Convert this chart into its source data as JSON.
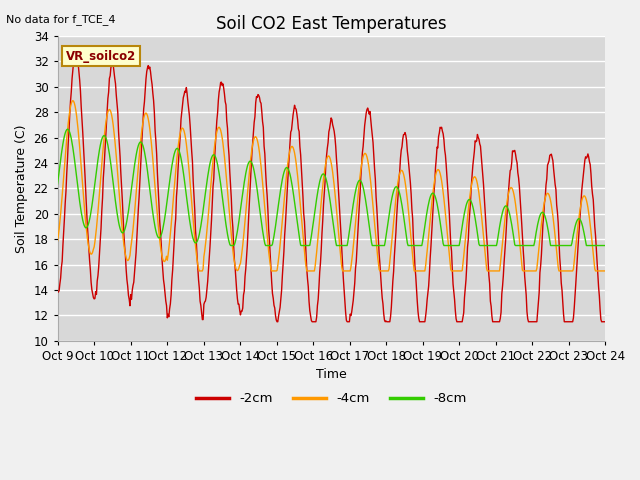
{
  "title": "Soil CO2 East Temperatures",
  "subtitle": "No data for f_TCE_4",
  "ylabel": "Soil Temperature (C)",
  "xlabel": "Time",
  "ylim": [
    10,
    34
  ],
  "xtick_labels": [
    "Oct 9",
    "Oct 10",
    "Oct 11",
    "Oct 12",
    "Oct 13",
    "Oct 14",
    "Oct 15",
    "Oct 16",
    "Oct 17",
    "Oct 18",
    "Oct 19",
    "Oct 20",
    "Oct 21",
    "Oct 22",
    "Oct 23",
    "Oct 24"
  ],
  "legend_label": "VR_soilco2",
  "series_labels": [
    "-2cm",
    "-4cm",
    "-8cm"
  ],
  "series_colors": [
    "#cc0000",
    "#ff9900",
    "#33cc00"
  ],
  "plot_bg_color": "#d8d8d8",
  "fig_bg_color": "#f0f0f0",
  "grid_color": "#ffffff",
  "title_fontsize": 12,
  "axis_fontsize": 9,
  "tick_fontsize": 8.5,
  "n_days": 15
}
